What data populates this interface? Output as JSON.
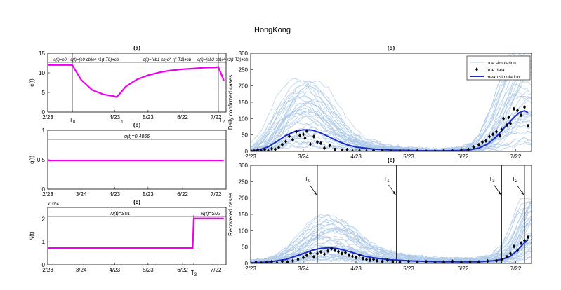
{
  "figure_title": "HongKong",
  "chart_data": [
    {
      "id": "a",
      "type": "line",
      "title": "(a)",
      "xlabel": "",
      "ylabel": "c(t)",
      "xlim": [
        0,
        160
      ],
      "ylim": [
        0,
        15
      ],
      "yticks": [
        0,
        5,
        10,
        15
      ],
      "xticks": [
        {
          "x": 0,
          "label": "2/23"
        },
        {
          "x": 22,
          "label": "T0"
        },
        {
          "x": 60,
          "label": "4/23"
        },
        {
          "x": 62,
          "label": "T1"
        },
        {
          "x": 90,
          "label": "5/23"
        },
        {
          "x": 121,
          "label": "6/22"
        },
        {
          "x": 151,
          "label": "7/22"
        },
        {
          "x": 153,
          "label": "T2"
        }
      ],
      "vlines": [
        22,
        62,
        153
      ],
      "series": [
        {
          "name": "c(t)",
          "color": "#ee00ee",
          "points": [
            [
              0,
              12
            ],
            [
              22,
              12
            ],
            [
              30,
              8.2
            ],
            [
              40,
              5.6
            ],
            [
              50,
              4.5
            ],
            [
              60,
              4.0
            ],
            [
              62,
              3.8
            ],
            [
              70,
              6.5
            ],
            [
              80,
              8.3
            ],
            [
              90,
              9.4
            ],
            [
              100,
              10.1
            ],
            [
              110,
              10.6
            ],
            [
              120,
              10.9
            ],
            [
              130,
              11.1
            ],
            [
              140,
              11.3
            ],
            [
              150,
              11.4
            ],
            [
              153,
              11.5
            ],
            [
              156,
              9.5
            ],
            [
              158,
              8.0
            ]
          ]
        }
      ],
      "annotations": [
        {
          "x": 11,
          "text": "c(t)=c0"
        },
        {
          "x": 42,
          "text": "c(t)=(c0-cb)e^-r1(t-T0)+cb"
        },
        {
          "x": 107,
          "text": "c(t)=(cb1-cb)e^-r(t-T1)+cb"
        },
        {
          "x": 157,
          "text": "c(t)=(cb2-cb)e^-r2(t-T2)+cb"
        }
      ]
    },
    {
      "id": "b",
      "type": "line",
      "title": "(b)",
      "xlabel": "",
      "ylabel": "q(t)",
      "xlim": [
        0,
        160
      ],
      "ylim": [
        0,
        1
      ],
      "yticks": [
        0,
        0.5,
        1
      ],
      "xticks": [
        {
          "x": 0,
          "label": "2/23"
        },
        {
          "x": 30,
          "label": "3/24"
        },
        {
          "x": 60,
          "label": "4/23"
        },
        {
          "x": 90,
          "label": "5/23"
        },
        {
          "x": 121,
          "label": "6/22"
        },
        {
          "x": 151,
          "label": "7/22"
        }
      ],
      "series": [
        {
          "name": "q(t)",
          "color": "#ee00ee",
          "points": [
            [
              0,
              0.4866
            ],
            [
              158,
              0.4866
            ]
          ]
        }
      ],
      "annotations": [
        {
          "x": 80,
          "text": "q(t)=0.4866"
        }
      ]
    },
    {
      "id": "c",
      "type": "line",
      "title": "(c)",
      "xlabel": "",
      "ylabel": "N(t)",
      "y_exponent": "x10^4",
      "xlim": [
        0,
        160
      ],
      "ylim": [
        0,
        2.5
      ],
      "yticks": [
        0,
        1,
        2
      ],
      "xticks": [
        {
          "x": 0,
          "label": "2/23"
        },
        {
          "x": 30,
          "label": "3/24"
        },
        {
          "x": 60,
          "label": "4/23"
        },
        {
          "x": 90,
          "label": "5/23"
        },
        {
          "x": 121,
          "label": "6/22"
        },
        {
          "x": 131,
          "label": "T3"
        },
        {
          "x": 151,
          "label": "7/22"
        }
      ],
      "series": [
        {
          "name": "N(t)",
          "color": "#ee00ee",
          "points": [
            [
              0,
              0.73
            ],
            [
              130,
              0.73
            ],
            [
              131,
              2.02
            ],
            [
              158,
              2.02
            ]
          ]
        }
      ],
      "annotations": [
        {
          "x": 65,
          "text": "N(t)=S01"
        },
        {
          "x": 146,
          "text": "N(t)=S02"
        }
      ]
    },
    {
      "id": "d",
      "type": "line",
      "title": "(d)",
      "xlabel": "",
      "ylabel": "Daily confirmed cases",
      "xlim": [
        0,
        160
      ],
      "ylim": [
        0,
        300
      ],
      "yticks": [
        0,
        50,
        100,
        150,
        200,
        250,
        300
      ],
      "xticks": [
        {
          "x": 0,
          "label": "2/23"
        },
        {
          "x": 30,
          "label": "3/24"
        },
        {
          "x": 60,
          "label": "4/23"
        },
        {
          "x": 90,
          "label": "5/23"
        },
        {
          "x": 121,
          "label": "6/22"
        },
        {
          "x": 151,
          "label": "7/22"
        }
      ],
      "legend": {
        "position": "top-right",
        "entries": [
          "one simulation",
          "true data",
          "mean simulation"
        ]
      },
      "simulation_color": "#b0cbe8",
      "series": [
        {
          "name": "mean simulation",
          "color": "#1a2ccc",
          "points": [
            [
              0,
              2
            ],
            [
              5,
              5
            ],
            [
              10,
              14
            ],
            [
              15,
              30
            ],
            [
              20,
              48
            ],
            [
              25,
              60
            ],
            [
              30,
              66
            ],
            [
              35,
              65
            ],
            [
              40,
              56
            ],
            [
              45,
              43
            ],
            [
              50,
              30
            ],
            [
              55,
              20
            ],
            [
              60,
              13
            ],
            [
              70,
              7
            ],
            [
              80,
              4
            ],
            [
              90,
              3
            ],
            [
              100,
              2
            ],
            [
              110,
              2
            ],
            [
              120,
              3
            ],
            [
              125,
              5
            ],
            [
              130,
              10
            ],
            [
              135,
              22
            ],
            [
              140,
              45
            ],
            [
              145,
              75
            ],
            [
              150,
              103
            ],
            [
              153,
              118
            ],
            [
              156,
              124
            ],
            [
              158,
              118
            ]
          ]
        },
        {
          "name": "true data",
          "color": "#000000",
          "points": [
            [
              0,
              3
            ],
            [
              2,
              1
            ],
            [
              4,
              4
            ],
            [
              6,
              2
            ],
            [
              8,
              5
            ],
            [
              10,
              2
            ],
            [
              12,
              8
            ],
            [
              14,
              6
            ],
            [
              16,
              12
            ],
            [
              18,
              20
            ],
            [
              20,
              30
            ],
            [
              22,
              46
            ],
            [
              24,
              35
            ],
            [
              26,
              60
            ],
            [
              28,
              48
            ],
            [
              30,
              52
            ],
            [
              31,
              40
            ],
            [
              32,
              62
            ],
            [
              34,
              22
            ],
            [
              36,
              45
            ],
            [
              38,
              28
            ],
            [
              40,
              25
            ],
            [
              42,
              10
            ],
            [
              45,
              18
            ],
            [
              48,
              6
            ],
            [
              52,
              3
            ],
            [
              55,
              5
            ],
            [
              58,
              1
            ],
            [
              62,
              2
            ],
            [
              66,
              1
            ],
            [
              70,
              3
            ],
            [
              75,
              2
            ],
            [
              80,
              0
            ],
            [
              85,
              1
            ],
            [
              90,
              1
            ],
            [
              95,
              2
            ],
            [
              100,
              0
            ],
            [
              105,
              1
            ],
            [
              110,
              2
            ],
            [
              115,
              1
            ],
            [
              120,
              4
            ],
            [
              124,
              6
            ],
            [
              127,
              13
            ],
            [
              130,
              20
            ],
            [
              132,
              28
            ],
            [
              134,
              32
            ],
            [
              136,
              45
            ],
            [
              138,
              52
            ],
            [
              140,
              60
            ],
            [
              142,
              48
            ],
            [
              143,
              66
            ],
            [
              144,
              100
            ],
            [
              146,
              80
            ],
            [
              147,
              104
            ],
            [
              148,
              85
            ],
            [
              150,
              130
            ],
            [
              152,
              125
            ],
            [
              154,
              110
            ],
            [
              156,
              135
            ],
            [
              158,
              78
            ]
          ]
        }
      ]
    },
    {
      "id": "e",
      "type": "line",
      "title": "(e)",
      "xlabel": "",
      "ylabel": "Recovered cases",
      "xlim": [
        0,
        160
      ],
      "ylim": [
        0,
        300
      ],
      "yticks": [
        0,
        50,
        100,
        150,
        200,
        250,
        300
      ],
      "xticks": [
        {
          "x": 0,
          "label": "2/23"
        },
        {
          "x": 30,
          "label": "3/24"
        },
        {
          "x": 60,
          "label": "4/23"
        },
        {
          "x": 90,
          "label": "5/23"
        },
        {
          "x": 121,
          "label": "6/22"
        },
        {
          "x": 151,
          "label": "7/22"
        }
      ],
      "vlines": [
        38,
        83,
        143,
        156
      ],
      "markers": [
        {
          "label": "T0",
          "x": 38
        },
        {
          "label": "T1",
          "x": 83
        },
        {
          "label": "T3",
          "x": 143
        },
        {
          "label": "T2",
          "x": 156
        }
      ],
      "simulation_color": "#b0cbe8",
      "series": [
        {
          "name": "mean simulation",
          "color": "#1a2ccc",
          "points": [
            [
              0,
              2
            ],
            [
              10,
              4
            ],
            [
              20,
              12
            ],
            [
              30,
              30
            ],
            [
              35,
              40
            ],
            [
              40,
              46
            ],
            [
              45,
              48
            ],
            [
              50,
              45
            ],
            [
              55,
              38
            ],
            [
              60,
              30
            ],
            [
              65,
              22
            ],
            [
              70,
              17
            ],
            [
              80,
              11
            ],
            [
              90,
              8
            ],
            [
              100,
              6
            ],
            [
              110,
              5
            ],
            [
              120,
              5
            ],
            [
              130,
              5
            ],
            [
              138,
              8
            ],
            [
              143,
              12
            ],
            [
              148,
              22
            ],
            [
              152,
              40
            ],
            [
              155,
              58
            ],
            [
              158,
              72
            ]
          ]
        },
        {
          "name": "true data",
          "color": "#000000",
          "points": [
            [
              0,
              2
            ],
            [
              3,
              4
            ],
            [
              6,
              1
            ],
            [
              9,
              3
            ],
            [
              12,
              5
            ],
            [
              15,
              2
            ],
            [
              18,
              6
            ],
            [
              21,
              4
            ],
            [
              24,
              8
            ],
            [
              27,
              12
            ],
            [
              30,
              18
            ],
            [
              32,
              25
            ],
            [
              34,
              32
            ],
            [
              36,
              20
            ],
            [
              38,
              30
            ],
            [
              40,
              35
            ],
            [
              42,
              28
            ],
            [
              44,
              38
            ],
            [
              46,
              45
            ],
            [
              48,
              40
            ],
            [
              50,
              36
            ],
            [
              52,
              30
            ],
            [
              54,
              33
            ],
            [
              56,
              25
            ],
            [
              58,
              22
            ],
            [
              60,
              18
            ],
            [
              62,
              25
            ],
            [
              64,
              15
            ],
            [
              66,
              12
            ],
            [
              68,
              10
            ],
            [
              70,
              12
            ],
            [
              72,
              8
            ],
            [
              75,
              6
            ],
            [
              78,
              10
            ],
            [
              81,
              5
            ],
            [
              85,
              4
            ],
            [
              90,
              6
            ],
            [
              95,
              3
            ],
            [
              100,
              5
            ],
            [
              105,
              2
            ],
            [
              110,
              4
            ],
            [
              115,
              6
            ],
            [
              120,
              3
            ],
            [
              125,
              5
            ],
            [
              130,
              4
            ],
            [
              135,
              7
            ],
            [
              140,
              8
            ],
            [
              143,
              12
            ],
            [
              146,
              20
            ],
            [
              148,
              30
            ],
            [
              150,
              52
            ],
            [
              152,
              40
            ],
            [
              154,
              62
            ],
            [
              156,
              70
            ],
            [
              158,
              80
            ]
          ]
        }
      ]
    }
  ]
}
